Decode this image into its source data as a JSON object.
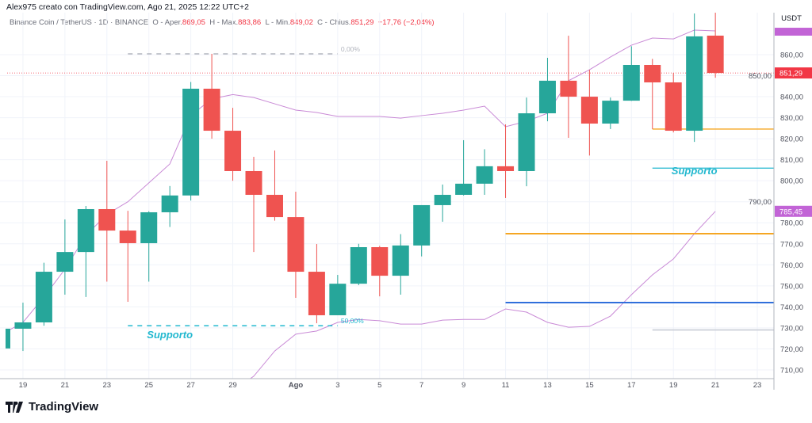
{
  "header": {
    "credit": "Alex975 creato con TradingView.com, Ago 21, 2025 12:22 UTC+2",
    "symbol": "Binance Coin / TetherUS · 1D · BINANCE",
    "open_label": "O - Aper.",
    "open": "869,05",
    "high_label": "H - Max.",
    "high": "883,86",
    "low_label": "L - Min.",
    "low": "849,02",
    "close_label": "C - Chius.",
    "close": "851,29",
    "change": "−17,76 (−2,04%)"
  },
  "footer": {
    "brand": "TradingView"
  },
  "colors": {
    "up": "#26a69a",
    "down": "#ef5350",
    "bands": "#c98ad6",
    "fib_top": "#b2b5be",
    "fib_mid": "#22b8cf",
    "orange": "#f5a623",
    "blue": "#2f6fdb",
    "cyan": "#22b8cf",
    "gray": "#d1d4dc",
    "last_price": "#f23645",
    "band_label": "#c264d6"
  },
  "chart_data": {
    "type": "candlestick",
    "currency": "USDT",
    "ylim": [
      705,
      875
    ],
    "y_ticks": [
      "710,00",
      "720,00",
      "730,00",
      "740,00",
      "750,00",
      "760,00",
      "770,00",
      "780,00",
      "790,00",
      "800,00",
      "810,00",
      "820,00",
      "830,00",
      "840,00",
      "850,00",
      "860,00"
    ],
    "x_ticks": [
      {
        "date": "2025-07-19",
        "label": "19"
      },
      {
        "date": "2025-07-21",
        "label": "21"
      },
      {
        "date": "2025-07-23",
        "label": "23"
      },
      {
        "date": "2025-07-25",
        "label": "25"
      },
      {
        "date": "2025-07-27",
        "label": "27"
      },
      {
        "date": "2025-07-29",
        "label": "29"
      },
      {
        "date": "2025-08-01",
        "label": "Ago"
      },
      {
        "date": "2025-08-03",
        "label": "3"
      },
      {
        "date": "2025-08-05",
        "label": "5"
      },
      {
        "date": "2025-08-07",
        "label": "7"
      },
      {
        "date": "2025-08-09",
        "label": "9"
      },
      {
        "date": "2025-08-11",
        "label": "11"
      },
      {
        "date": "2025-08-13",
        "label": "13"
      },
      {
        "date": "2025-08-15",
        "label": "15"
      },
      {
        "date": "2025-08-17",
        "label": "17"
      },
      {
        "date": "2025-08-19",
        "label": "19"
      },
      {
        "date": "2025-08-21",
        "label": "21"
      },
      {
        "date": "2025-08-23",
        "label": "23"
      }
    ],
    "candles": [
      [
        "2025-07-18",
        720.2,
        731,
        718,
        729.6
      ],
      [
        "2025-07-19",
        729.6,
        742,
        719,
        732.6
      ],
      [
        "2025-07-20",
        732.6,
        761,
        731,
        756.7
      ],
      [
        "2025-07-21",
        756.7,
        781.6,
        745.8,
        766.1
      ],
      [
        "2025-07-22",
        766.1,
        788,
        744.7,
        786.5
      ],
      [
        "2025-07-23",
        786.5,
        809.5,
        752,
        776.3
      ],
      [
        "2025-07-24",
        776.3,
        785.7,
        742.4,
        770.3
      ],
      [
        "2025-07-25",
        770.3,
        785.5,
        752,
        785
      ],
      [
        "2025-07-26",
        785,
        797.5,
        778,
        793
      ],
      [
        "2025-07-27",
        793,
        847,
        790.6,
        843.8
      ],
      [
        "2025-07-28",
        843.8,
        860.4,
        820,
        823.8
      ],
      [
        "2025-07-29",
        823.8,
        834.7,
        800,
        804.6
      ],
      [
        "2025-07-30",
        804.6,
        811.4,
        766.1,
        793.3
      ],
      [
        "2025-07-31",
        793.3,
        814.4,
        781,
        782.7
      ],
      [
        "2025-08-01",
        782.7,
        794.8,
        744.3,
        756.7
      ],
      [
        "2025-08-02",
        756.7,
        769.9,
        732.2,
        736
      ],
      [
        "2025-08-03",
        736,
        755.2,
        736,
        751
      ],
      [
        "2025-08-04",
        751,
        770,
        750.3,
        768.4
      ],
      [
        "2025-08-05",
        768.4,
        769,
        745,
        754.8
      ],
      [
        "2025-08-06",
        754.8,
        774.6,
        745.8,
        769.2
      ],
      [
        "2025-08-07",
        769.2,
        788.4,
        764,
        788.4
      ],
      [
        "2025-08-08",
        788.4,
        798.2,
        780.5,
        793.3
      ],
      [
        "2025-08-09",
        793.3,
        819.3,
        793,
        798.6
      ],
      [
        "2025-08-10",
        798.6,
        815,
        793.3,
        806.9
      ],
      [
        "2025-08-11",
        806.9,
        826.8,
        791.8,
        804.6
      ],
      [
        "2025-08-12",
        804.6,
        839.6,
        797.4,
        832.1
      ],
      [
        "2025-08-13",
        832.1,
        858.5,
        828.3,
        847.6
      ],
      [
        "2025-08-14",
        847.6,
        869,
        820.4,
        840
      ],
      [
        "2025-08-15",
        840,
        852.8,
        812,
        827.2
      ],
      [
        "2025-08-16",
        827.2,
        839.6,
        824.6,
        838.1
      ],
      [
        "2025-08-17",
        838.1,
        864,
        838,
        855.1
      ],
      [
        "2025-08-18",
        855.1,
        858,
        824.6,
        846.8
      ],
      [
        "2025-08-19",
        846.8,
        851.3,
        823,
        823.8
      ],
      [
        "2025-08-20",
        823.8,
        879.6,
        818.5,
        868.7
      ],
      [
        "2025-08-21",
        869.05,
        883.86,
        849.02,
        851.29
      ]
    ],
    "upper_band": [
      727,
      732.6,
      744.7,
      757.9,
      774,
      784,
      790,
      799,
      808,
      831,
      839,
      841,
      839.6,
      836.6,
      833.6,
      832.5,
      830.6,
      830.6,
      830.6,
      829.8,
      831,
      832.1,
      833.6,
      835.5,
      825.7,
      828.3,
      832.1,
      847.6,
      852.8,
      858.9,
      864.5,
      867.9,
      867.5,
      871.7,
      871.3
    ],
    "lower_band": [
      null,
      null,
      null,
      null,
      null,
      null,
      null,
      null,
      null,
      null,
      null,
      700,
      707,
      719,
      727,
      728.5,
      732.6,
      734,
      733.4,
      731.8,
      731.8,
      733.7,
      734,
      734,
      739,
      737.5,
      732.6,
      730.3,
      730.7,
      735.6,
      745.8,
      755.2,
      762.8,
      774.8,
      785.45
    ],
    "last_price": {
      "value": 851.29,
      "label": "851,29"
    },
    "band_price": {
      "value": 785.45,
      "label": "785,45"
    },
    "upper_band_marker": {
      "value": 871.3
    },
    "fib": [
      {
        "value": 860.4,
        "label": "0,00%",
        "from": "2025-07-24",
        "to": "2025-08-03",
        "style": "dashed",
        "color": "#b2b5be"
      },
      {
        "value": 731,
        "label": "50,00%",
        "from": "2025-07-24",
        "to": "2025-08-03",
        "style": "dashed",
        "color": "#22b8cf"
      }
    ],
    "hlines": [
      {
        "value": 824.6,
        "from": "2025-08-18",
        "color": "#f5a623",
        "weight": "thin"
      },
      {
        "value": 806,
        "from": "2025-08-18",
        "color": "#22b8cf",
        "weight": "thin"
      },
      {
        "value": 774.8,
        "from": "2025-08-11",
        "color": "#f5a623",
        "weight": "thick"
      },
      {
        "value": 742,
        "from": "2025-08-11",
        "color": "#2f6fdb",
        "weight": "thick"
      },
      {
        "value": 729,
        "from": "2025-08-18",
        "color": "#d1d4dc",
        "weight": "thick"
      }
    ],
    "annotations": [
      {
        "text": "Supporto",
        "date": "2025-07-26",
        "value": 725
      },
      {
        "text": "Supporto",
        "date": "2025-08-20",
        "value": 803
      }
    ]
  }
}
